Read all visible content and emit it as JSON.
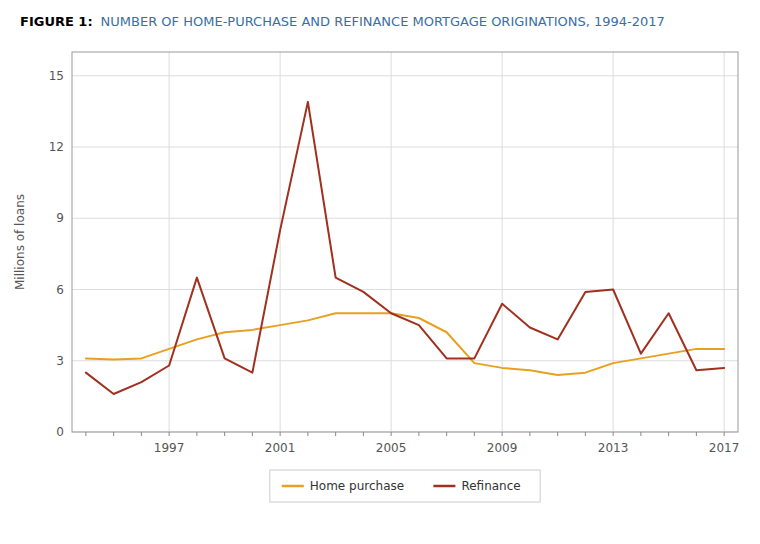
{
  "chart_data": {
    "type": "line",
    "title": "FIGURE 1:",
    "subtitle": "NUMBER OF HOME-PURCHASE AND REFINANCE MORTGAGE ORIGINATIONS, 1994-2017",
    "y_label": "Millions of loans",
    "x": [
      1994,
      1995,
      1996,
      1997,
      1998,
      1999,
      2000,
      2001,
      2002,
      2003,
      2004,
      2005,
      2006,
      2007,
      2008,
      2009,
      2010,
      2011,
      2012,
      2013,
      2014,
      2015,
      2016,
      2017
    ],
    "series": [
      {
        "name": "Home purchase",
        "color": "#E8A020",
        "values": [
          3.1,
          3.05,
          3.1,
          3.5,
          3.9,
          4.2,
          4.3,
          4.5,
          4.7,
          5.0,
          5.0,
          5.0,
          4.8,
          4.2,
          2.9,
          2.7,
          2.6,
          2.4,
          2.5,
          2.9,
          3.1,
          3.3,
          3.5,
          3.5
        ]
      },
      {
        "name": "Refinance",
        "color": "#A03020",
        "values": [
          2.5,
          1.6,
          2.1,
          2.8,
          6.5,
          3.1,
          2.5,
          8.5,
          13.9,
          6.5,
          5.9,
          5.0,
          4.5,
          3.1,
          3.1,
          5.4,
          4.4,
          3.9,
          5.9,
          6.0,
          3.3,
          5.0,
          2.6,
          2.7
        ]
      }
    ],
    "xlim": [
      1993.5,
      2017.5
    ],
    "xticks": [
      1997,
      2001,
      2005,
      2009,
      2013,
      2017
    ],
    "ylim": [
      0,
      16
    ],
    "yticks": [
      0,
      3,
      6,
      9,
      12,
      15
    ],
    "grid": true,
    "legend": "bottom"
  }
}
